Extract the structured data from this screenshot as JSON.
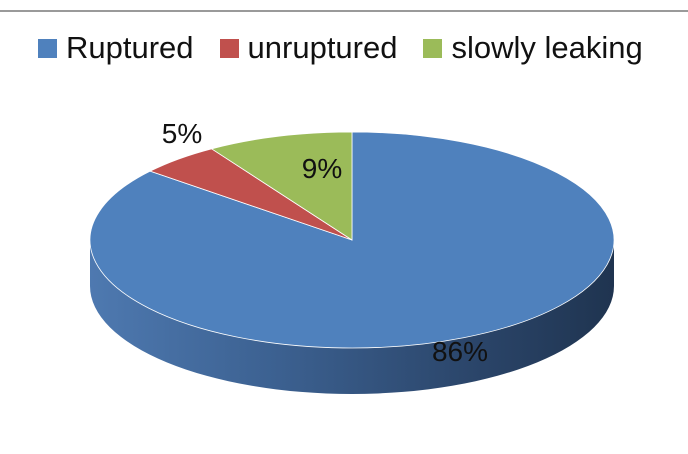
{
  "chart_data": {
    "type": "pie",
    "style": "3d",
    "title": "",
    "categories": [
      "Ruptured",
      "unruptured",
      "slowly leaking"
    ],
    "values": [
      86,
      5,
      9
    ],
    "data_labels": [
      "86%",
      "5%",
      "9%"
    ],
    "colors": [
      "#4F81BD",
      "#C0504D",
      "#9BBB59"
    ],
    "legend": {
      "placement": "top",
      "entries": [
        "Ruptured",
        "unruptured",
        "slowly leaking"
      ]
    }
  }
}
